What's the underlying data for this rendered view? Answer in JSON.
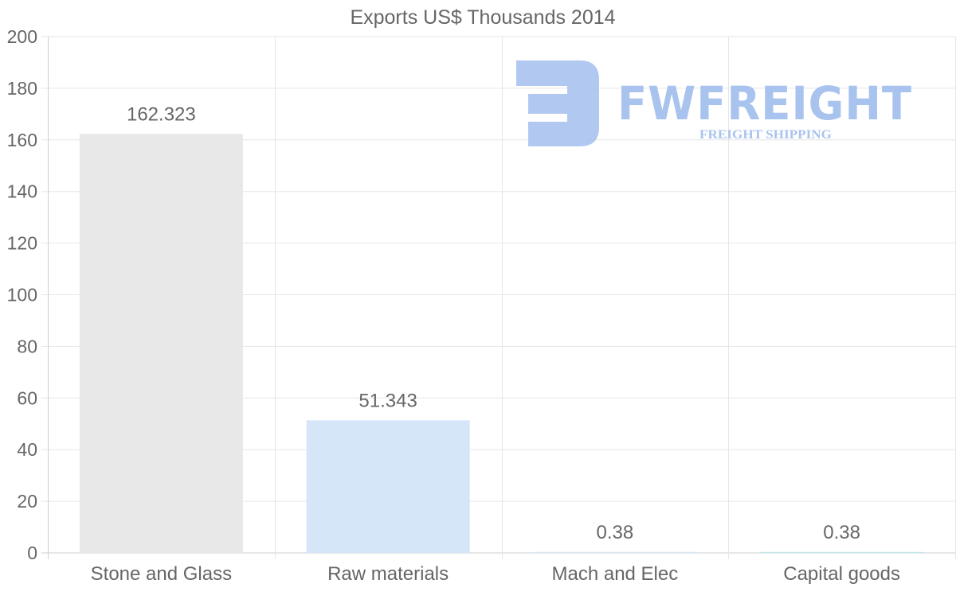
{
  "chart_data": {
    "type": "bar",
    "title": "Exports US$ Thousands 2014",
    "categories": [
      "Stone and Glass",
      "Raw materials",
      "Mach and Elec",
      "Capital goods"
    ],
    "values": [
      162.323,
      51.343,
      0.38,
      0.38
    ],
    "value_labels": [
      "162.323",
      "51.343",
      "0.38",
      "0.38"
    ],
    "colors": [
      "#e8e8e8",
      "#d6e6f9",
      "#d8e8f5",
      "#bfe9ec"
    ],
    "ylim": [
      0,
      200
    ],
    "yticks": [
      0,
      20,
      40,
      60,
      80,
      100,
      120,
      140,
      160,
      180,
      200
    ],
    "xlabel": "",
    "ylabel": "",
    "grid": true,
    "legend": "none"
  },
  "watermark": {
    "brand": "FWFREIGHT",
    "tagline": "FREIGHT SHIPPING",
    "color": "#a9c3ef"
  }
}
